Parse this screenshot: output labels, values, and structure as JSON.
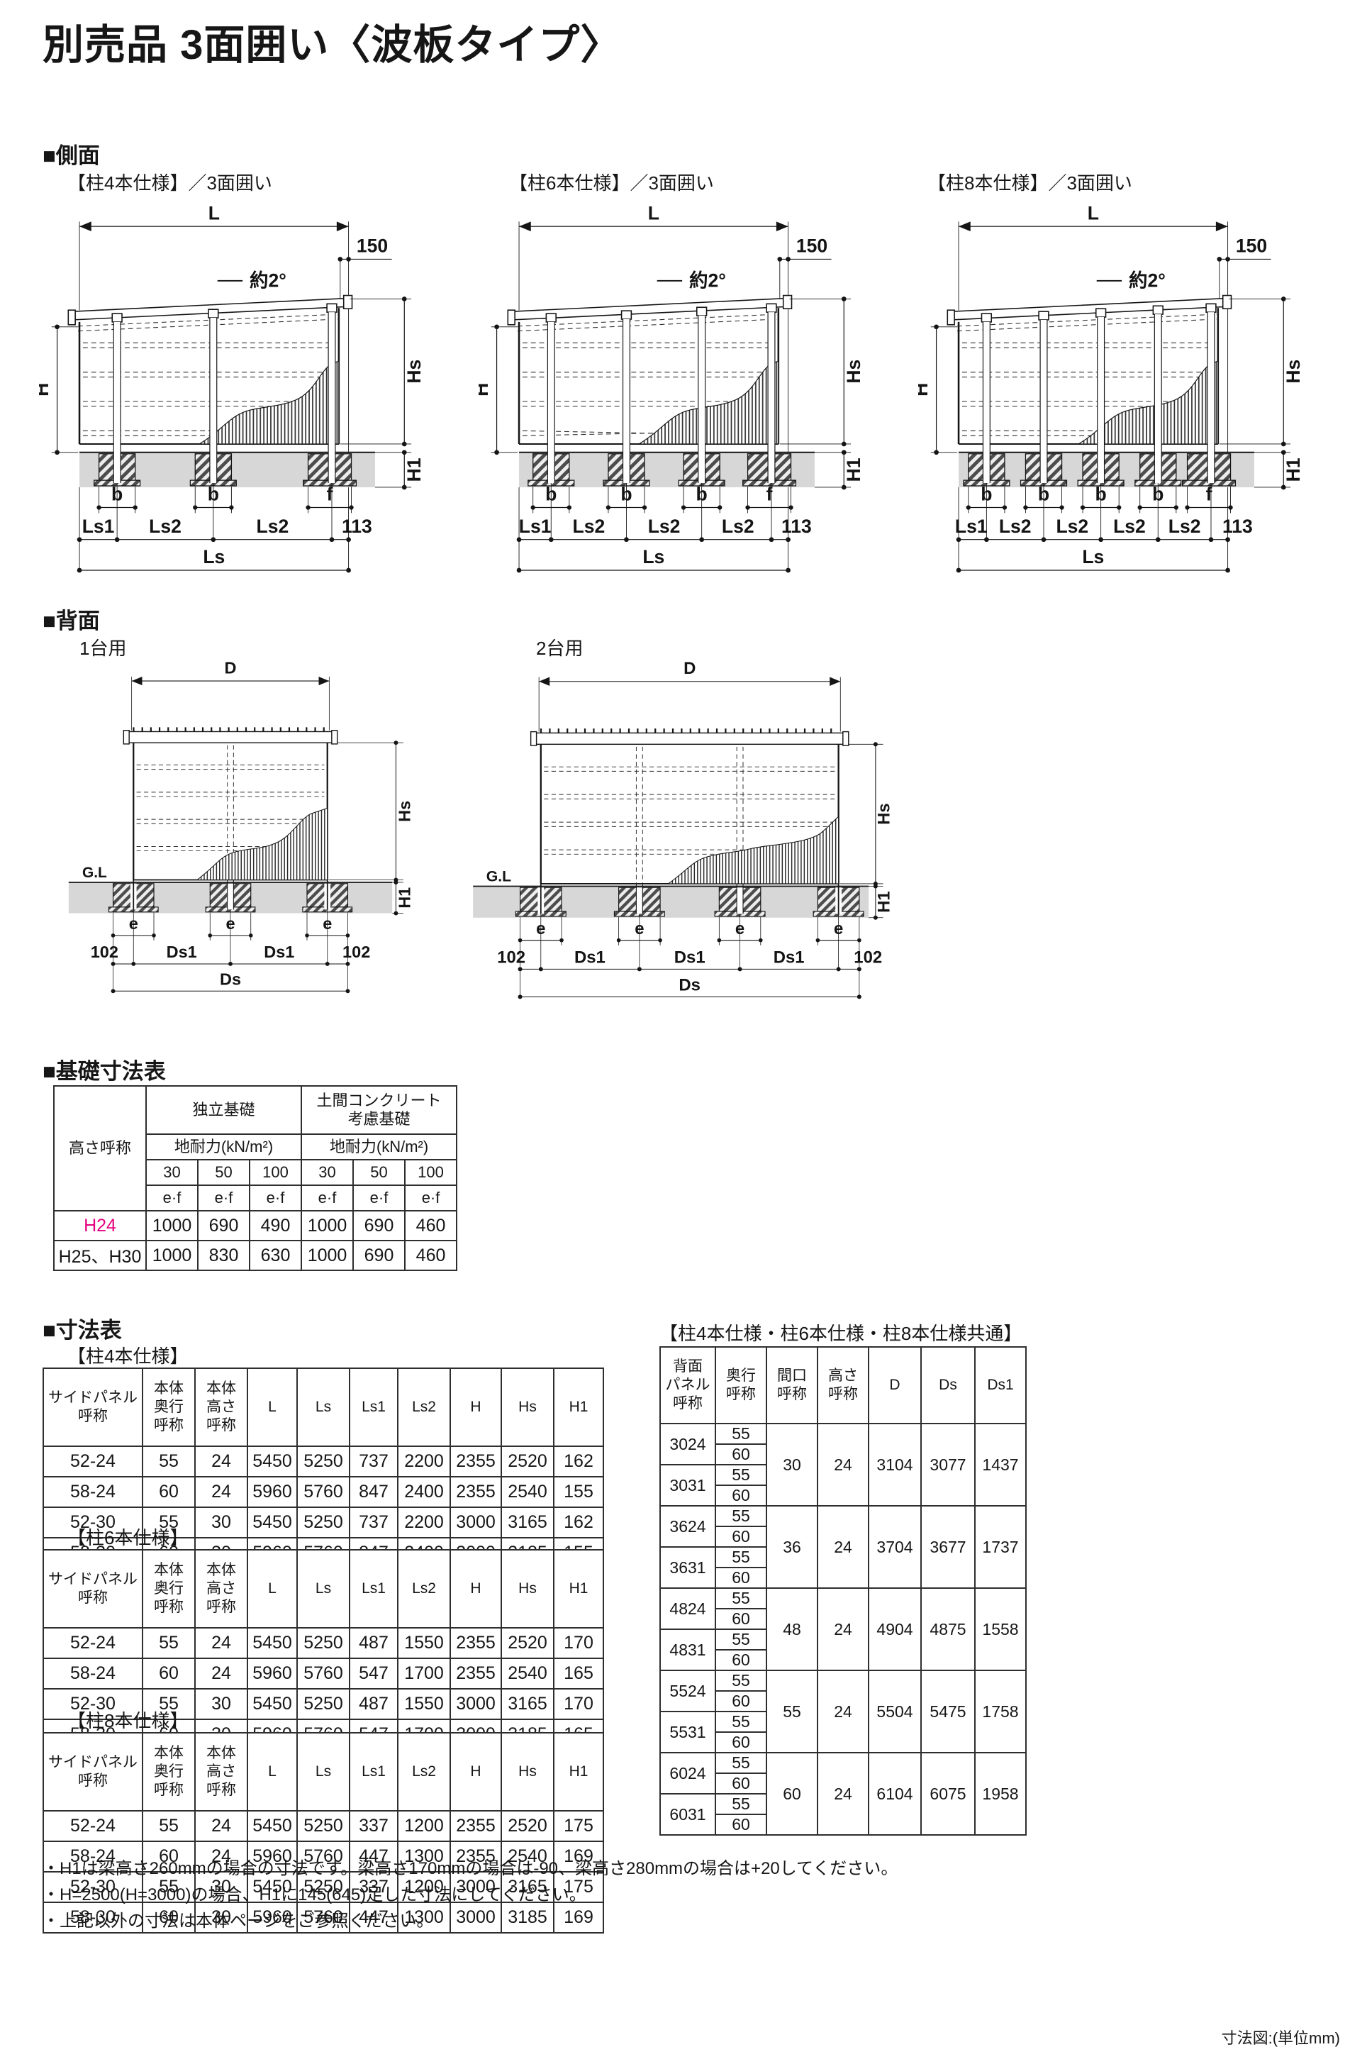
{
  "title": "別売品 3面囲い〈波板タイプ〉",
  "unit_note": "寸法図:(単位mm)",
  "sections": {
    "side": {
      "heading": "■側面",
      "variants": [
        "【柱4本仕様】／3面囲い",
        "【柱6本仕様】／3面囲い",
        "【柱8本仕様】／3面囲い"
      ]
    },
    "back": {
      "heading": "■背面",
      "variants": [
        "1台用",
        "2台用"
      ]
    }
  },
  "diagram_labels": {
    "L": "L",
    "dim150": "150",
    "slope": "約2°",
    "H": "H",
    "Hs": "Hs",
    "H1": "H1",
    "b": "b",
    "f": "f",
    "Ls1": "Ls1",
    "Ls2": "Ls2",
    "dim113": "113",
    "Ls": "Ls",
    "D": "D",
    "e": "e",
    "dim102": "102",
    "Ds1": "Ds1",
    "Ds": "Ds",
    "GL": "G.L"
  },
  "foundation_table": {
    "heading": "■基礎寸法表",
    "col_height": "高さ呼称",
    "group1": "独立基礎",
    "group2": "土間コンクリート\n考慮基礎",
    "subheader": "地耐力(kN/m²)",
    "loads": [
      "30",
      "50",
      "100"
    ],
    "ef": "e·f",
    "rows": [
      {
        "name": "H24",
        "values": [
          "1000",
          "690",
          "490",
          "1000",
          "690",
          "460"
        ]
      },
      {
        "name": "H25、H30",
        "values": [
          "1000",
          "830",
          "630",
          "1000",
          "690",
          "460"
        ]
      }
    ]
  },
  "dimension_tables": {
    "heading": "■寸法表",
    "headers": [
      "サイドパネル\n呼称",
      "本体\n奥行\n呼称",
      "本体\n高さ\n呼称",
      "L",
      "Ls",
      "Ls1",
      "Ls2",
      "H",
      "Hs",
      "H1"
    ],
    "tables": [
      {
        "label": "【柱4本仕様】",
        "rows": [
          [
            "52-24",
            "55",
            "24",
            "5450",
            "5250",
            "737",
            "2200",
            "2355",
            "2520",
            "162"
          ],
          [
            "58-24",
            "60",
            "24",
            "5960",
            "5760",
            "847",
            "2400",
            "2355",
            "2540",
            "155"
          ],
          [
            "52-30",
            "55",
            "30",
            "5450",
            "5250",
            "737",
            "2200",
            "3000",
            "3165",
            "162"
          ],
          [
            "58-30",
            "60",
            "30",
            "5960",
            "5760",
            "847",
            "2400",
            "3000",
            "3185",
            "155"
          ]
        ]
      },
      {
        "label": "【柱6本仕様】",
        "rows": [
          [
            "52-24",
            "55",
            "24",
            "5450",
            "5250",
            "487",
            "1550",
            "2355",
            "2520",
            "170"
          ],
          [
            "58-24",
            "60",
            "24",
            "5960",
            "5760",
            "547",
            "1700",
            "2355",
            "2540",
            "165"
          ],
          [
            "52-30",
            "55",
            "30",
            "5450",
            "5250",
            "487",
            "1550",
            "3000",
            "3165",
            "170"
          ],
          [
            "58-30",
            "60",
            "30",
            "5960",
            "5760",
            "547",
            "1700",
            "3000",
            "3185",
            "165"
          ]
        ]
      },
      {
        "label": "【柱8本仕様】",
        "rows": [
          [
            "52-24",
            "55",
            "24",
            "5450",
            "5250",
            "337",
            "1200",
            "2355",
            "2520",
            "175"
          ],
          [
            "58-24",
            "60",
            "24",
            "5960",
            "5760",
            "447",
            "1300",
            "2355",
            "2540",
            "169"
          ],
          [
            "52-30",
            "55",
            "30",
            "5450",
            "5250",
            "337",
            "1200",
            "3000",
            "3165",
            "175"
          ],
          [
            "58-30",
            "60",
            "30",
            "5960",
            "5760",
            "447",
            "1300",
            "3000",
            "3185",
            "169"
          ]
        ]
      }
    ]
  },
  "common_table": {
    "label": "【柱4本仕様・柱6本仕様・柱8本仕様共通】",
    "headers": [
      "背面\nパネル\n呼称",
      "奥行\n呼称",
      "間口\n呼称",
      "高さ\n呼称",
      "D",
      "Ds",
      "Ds1"
    ],
    "depths": [
      "55",
      "60"
    ],
    "groups": [
      {
        "panels": [
          "3024",
          "3031"
        ],
        "span": "30",
        "height": "24",
        "D": "3104",
        "Ds": "3077",
        "Ds1": "1437"
      },
      {
        "panels": [
          "3624",
          "3631"
        ],
        "span": "36",
        "height": "24",
        "D": "3704",
        "Ds": "3677",
        "Ds1": "1737"
      },
      {
        "panels": [
          "4824",
          "4831"
        ],
        "span": "48",
        "height": "24",
        "D": "4904",
        "Ds": "4875",
        "Ds1": "1558"
      },
      {
        "panels": [
          "5524",
          "5531"
        ],
        "span": "55",
        "height": "24",
        "D": "5504",
        "Ds": "5475",
        "Ds1": "1758"
      },
      {
        "panels": [
          "6024",
          "6031"
        ],
        "span": "60",
        "height": "24",
        "D": "6104",
        "Ds": "6075",
        "Ds1": "1958"
      }
    ]
  },
  "footnotes": [
    "・H1は梁高さ260mmの場合の寸法です。梁高さ170mmの場合は-90、梁高さ280mmの場合は+20してください。",
    "・H=2500(H=3000)の場合、H1に145(645)足した寸法にしてください。",
    "・上記以外の寸法は本体ページをご参照ください。"
  ]
}
